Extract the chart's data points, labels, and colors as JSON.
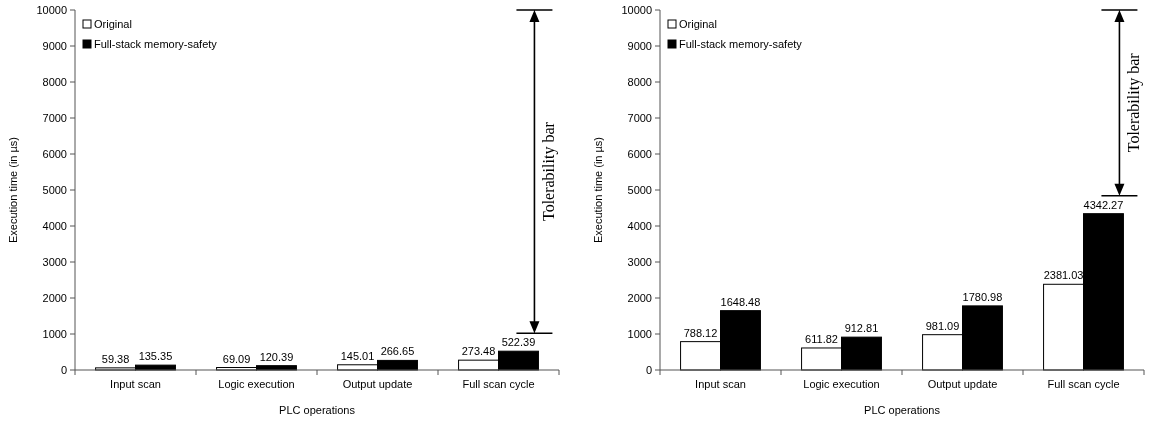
{
  "chart_data": [
    {
      "type": "bar",
      "xlabel": "PLC operations",
      "ylabel": "Execution time (in µs)",
      "categories": [
        "Input scan",
        "Logic execution",
        "Output update",
        "Full scan cycle"
      ],
      "series": [
        {
          "name": "Original",
          "color": "#ffffff",
          "values": [
            59.38,
            69.09,
            145.01,
            273.48
          ]
        },
        {
          "name": "Full-stack memory-safety",
          "color": "#000000",
          "values": [
            135.35,
            120.39,
            266.65,
            522.39
          ]
        }
      ],
      "ylim": [
        0,
        10000
      ],
      "yticks": [
        0,
        1000,
        2000,
        3000,
        4000,
        5000,
        6000,
        7000,
        8000,
        9000,
        10000
      ],
      "data_labels": true,
      "legend": "top left",
      "grid": false,
      "annotations": [
        "Tolerability bar"
      ]
    },
    {
      "type": "bar",
      "xlabel": "PLC operations",
      "ylabel": "Execution time (in µs)",
      "categories": [
        "Input scan",
        "Logic execution",
        "Output update",
        "Full scan cycle"
      ],
      "series": [
        {
          "name": "Original",
          "color": "#ffffff",
          "values": [
            788.12,
            611.82,
            981.09,
            2381.03
          ]
        },
        {
          "name": "Full-stack memory-safety",
          "color": "#000000",
          "values": [
            1648.48,
            912.81,
            1780.98,
            4342.27
          ]
        }
      ],
      "ylim": [
        0,
        10000
      ],
      "yticks": [
        0,
        1000,
        2000,
        3000,
        4000,
        5000,
        6000,
        7000,
        8000,
        9000,
        10000
      ],
      "data_labels": true,
      "legend": "top left",
      "grid": false,
      "annotations": [
        "Tolerability bar"
      ]
    }
  ]
}
